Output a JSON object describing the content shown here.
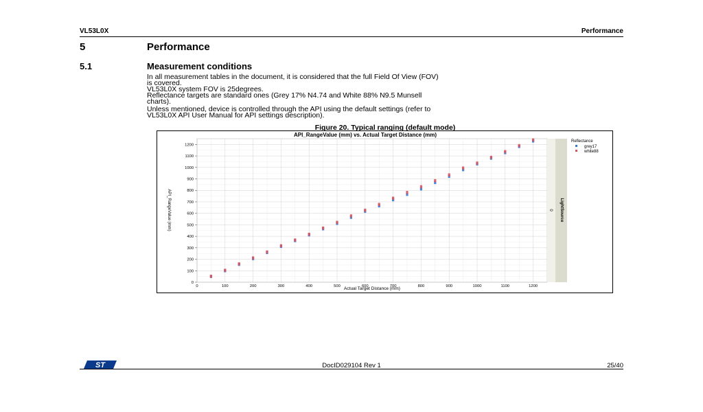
{
  "header": {
    "left": "VL53L0X",
    "right": "Performance"
  },
  "section": {
    "number": "5",
    "title": "Performance"
  },
  "subsection": {
    "number": "5.1",
    "title": "Measurement conditions"
  },
  "paragraphs": {
    "p1_lines": [
      "In all measurement tables in the document, it is considered that the full Field Of View (FOV)",
      "is covered.",
      "VL53L0X system FOV is 25degrees.",
      "Reflectance targets are standard ones (Grey 17% N4.74 and White 88% N9.5 Munsell",
      "charts)."
    ],
    "p2_lines": [
      "Unless mentioned, device is controlled through the API using the default settings (refer to",
      "VL53L0X API User Manual for API settings description)."
    ]
  },
  "figure": {
    "caption": "Figure 20. Typical ranging (default mode)"
  },
  "chart_data": {
    "type": "scatter",
    "title": "API_RangeValue (mm) vs. Actual Target Distance (mm)",
    "xlabel": "Actual Target Distance (mm)",
    "ylabel": "API_RangeValue (mm)",
    "xlim": [
      0,
      1250
    ],
    "ylim": [
      0,
      1250
    ],
    "x_ticks": [
      0,
      100,
      200,
      300,
      400,
      500,
      600,
      700,
      800,
      900,
      1000,
      1100,
      1200
    ],
    "y_ticks": [
      0,
      100,
      200,
      300,
      400,
      500,
      600,
      700,
      800,
      900,
      1000,
      1100,
      1200
    ],
    "grid": true,
    "legend_title": "Reflectance",
    "legend_position": "right",
    "panel_label": "0",
    "panel_strip_label": "LightSource",
    "series": [
      {
        "name": "grey17",
        "color": "#3a78d8",
        "points": [
          [
            50,
            50
          ],
          [
            100,
            100
          ],
          [
            150,
            155
          ],
          [
            200,
            205
          ],
          [
            250,
            258
          ],
          [
            300,
            312
          ],
          [
            350,
            362
          ],
          [
            400,
            412
          ],
          [
            450,
            465
          ],
          [
            500,
            512
          ],
          [
            550,
            565
          ],
          [
            600,
            618
          ],
          [
            650,
            665
          ],
          [
            700,
            718
          ],
          [
            750,
            765
          ],
          [
            800,
            812
          ],
          [
            850,
            868
          ],
          [
            900,
            922
          ],
          [
            950,
            980
          ],
          [
            1000,
            1030
          ],
          [
            1050,
            1080
          ],
          [
            1100,
            1128
          ],
          [
            1150,
            1182
          ],
          [
            1200,
            1230
          ]
        ]
      },
      {
        "name": "white88",
        "color": "#d9535e",
        "points": [
          [
            50,
            52
          ],
          [
            100,
            104
          ],
          [
            150,
            160
          ],
          [
            200,
            212
          ],
          [
            250,
            264
          ],
          [
            300,
            318
          ],
          [
            350,
            368
          ],
          [
            400,
            418
          ],
          [
            450,
            472
          ],
          [
            500,
            522
          ],
          [
            550,
            578
          ],
          [
            600,
            628
          ],
          [
            650,
            678
          ],
          [
            700,
            732
          ],
          [
            750,
            782
          ],
          [
            800,
            832
          ],
          [
            850,
            885
          ],
          [
            900,
            935
          ],
          [
            950,
            995
          ],
          [
            1000,
            1038
          ],
          [
            1050,
            1088
          ],
          [
            1100,
            1138
          ],
          [
            1150,
            1190
          ],
          [
            1200,
            1240
          ]
        ]
      }
    ]
  },
  "footer": {
    "doc_id": "DocID029104 Rev 1",
    "page": "25/40",
    "logo": "st-logo"
  }
}
